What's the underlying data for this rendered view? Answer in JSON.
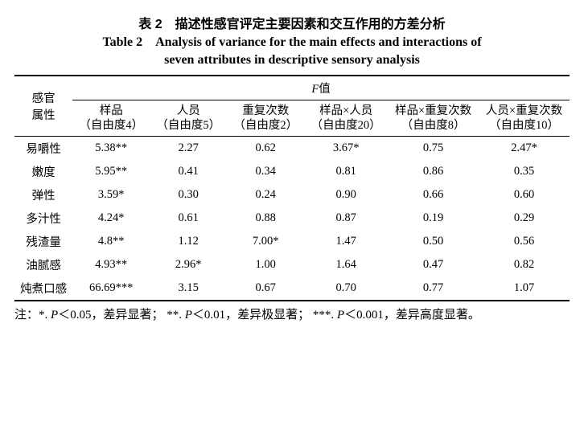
{
  "title": {
    "cn_prefix": "表 2",
    "cn": "描述性感官评定主要因素和交互作用的方差分析",
    "en_prefix": "Table 2",
    "en_line1": "Analysis of variance for the main effects and interactions of",
    "en_line2": "seven attributes in descriptive sensory analysis"
  },
  "header": {
    "row_label_l1": "感官",
    "row_label_l2": "属性",
    "f_value_label": "F值",
    "cols": [
      {
        "name": "样品",
        "df": "（自由度4）"
      },
      {
        "name": "人员",
        "df": "（自由度5）"
      },
      {
        "name": "重复次数",
        "df": "（自由度2）"
      },
      {
        "name": "样品×人员",
        "df": "（自由度20）"
      },
      {
        "name": "样品×重复次数",
        "df": "（自由度8）"
      },
      {
        "name": "人员×重复次数",
        "df": "（自由度10）"
      }
    ]
  },
  "rows": [
    {
      "attr": "易嚼性",
      "v": [
        "5.38**",
        "2.27",
        "0.62",
        "3.67*",
        "0.75",
        "2.47*"
      ]
    },
    {
      "attr": "嫩度",
      "v": [
        "5.95**",
        "0.41",
        "0.34",
        "0.81",
        "0.86",
        "0.35"
      ]
    },
    {
      "attr": "弹性",
      "v": [
        "3.59*",
        "0.30",
        "0.24",
        "0.90",
        "0.66",
        "0.60"
      ]
    },
    {
      "attr": "多汁性",
      "v": [
        "4.24*",
        "0.61",
        "0.88",
        "0.87",
        "0.19",
        "0.29"
      ]
    },
    {
      "attr": "残渣量",
      "v": [
        "4.8**",
        "1.12",
        "7.00*",
        "1.47",
        "0.50",
        "0.56"
      ]
    },
    {
      "attr": "油腻感",
      "v": [
        "4.93**",
        "2.96*",
        "1.00",
        "1.64",
        "0.47",
        "0.82"
      ]
    },
    {
      "attr": "炖煮口感",
      "v": [
        "66.69***",
        "3.15",
        "0.67",
        "0.70",
        "0.77",
        "1.07"
      ]
    }
  ],
  "note": {
    "prefix": "注：",
    "s1a": "*. ",
    "s1p": "P",
    "s1b": "＜0.05，差异显著；",
    "s2a": "**. ",
    "s2p": "P",
    "s2b": "＜0.01，差异极显著；",
    "s3a": "***. ",
    "s3p": "P",
    "s3b": "＜0.001，差异高度显著。"
  }
}
